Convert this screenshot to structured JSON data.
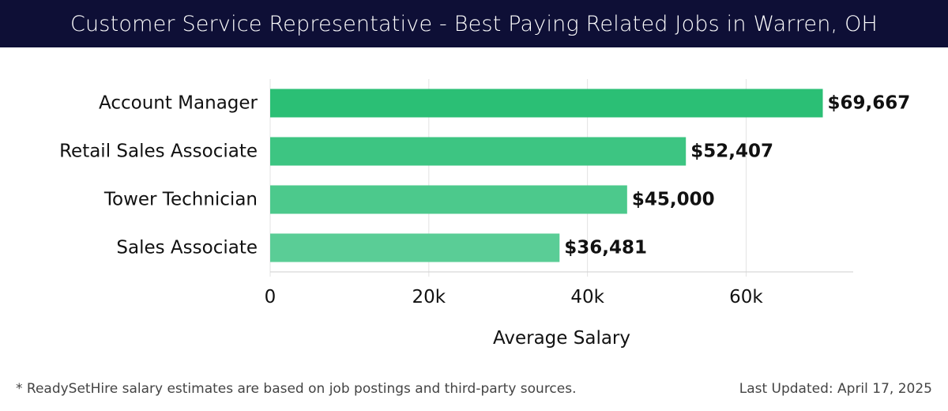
{
  "header": {
    "title": "Customer Service Representative - Best Paying Related Jobs in Warren, OH",
    "background": "#0e0f36"
  },
  "chart_data": {
    "type": "bar",
    "orientation": "horizontal",
    "categories": [
      "Account Manager",
      "Retail Sales Associate",
      "Tower Technician",
      "Sales Associate"
    ],
    "values": [
      69667,
      52407,
      45000,
      36481
    ],
    "value_labels": [
      "$69,667",
      "$52,407",
      "$45,000",
      "$36,481"
    ],
    "bar_colors": [
      "#2bbf75",
      "#3dc582",
      "#4cc98c",
      "#5acd96"
    ],
    "xlabel": "Average Salary",
    "ylabel": "",
    "xlim": [
      0,
      73500
    ],
    "xticks": [
      0,
      20000,
      40000,
      60000
    ],
    "xtick_labels": [
      "0",
      "20k",
      "40k",
      "60k"
    ],
    "grid": true
  },
  "footer": {
    "note": "* ReadySetHire salary estimates are based on job postings and third-party sources.",
    "updated": "Last Updated: April 17, 2025"
  }
}
